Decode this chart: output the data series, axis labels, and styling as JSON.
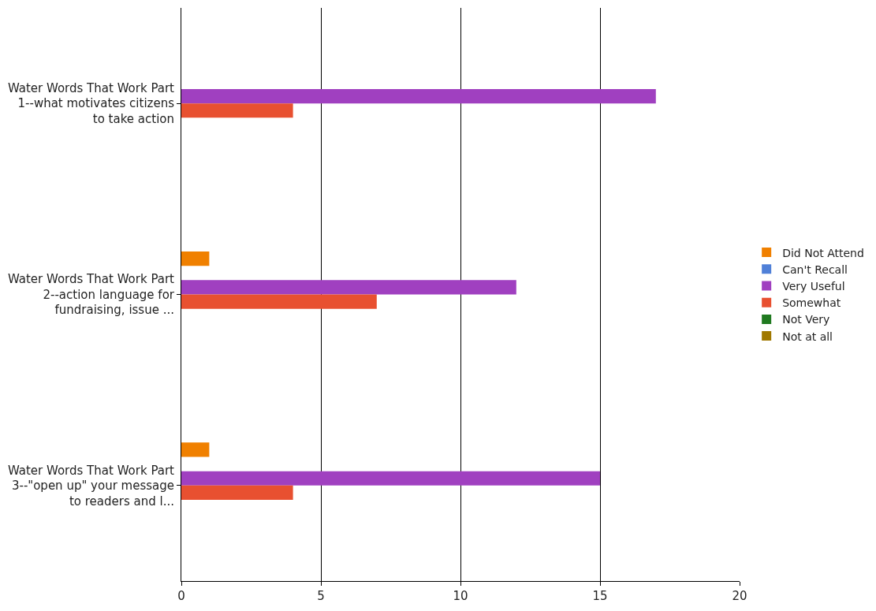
{
  "chart_data": {
    "type": "bar",
    "orientation": "horizontal",
    "categories": [
      "Water Words That Work Part 1--what motivates citizens to take action",
      "Water Words That Work Part 2--action language for fundraising, issue ...",
      "Water Words That Work Part 3--\"open up\" your message to readers and l..."
    ],
    "series": [
      {
        "name": "Did Not Attend",
        "color": "#f08000",
        "values": [
          0,
          1,
          1
        ]
      },
      {
        "name": "Can't Recall",
        "color": "#5080d8",
        "values": [
          0,
          0,
          0
        ]
      },
      {
        "name": "Very Useful",
        "color": "#a040c0",
        "values": [
          17,
          12,
          15
        ]
      },
      {
        "name": "Somewhat",
        "color": "#e85030",
        "values": [
          4,
          7,
          4
        ]
      },
      {
        "name": "Not Very",
        "color": "#207a20",
        "values": [
          0,
          0,
          0
        ]
      },
      {
        "name": "Not at all",
        "color": "#a07800",
        "values": [
          0,
          0,
          0
        ]
      }
    ],
    "xlim": [
      0,
      20
    ],
    "xticks": [
      0,
      5,
      10,
      15,
      20
    ],
    "grid": "x",
    "legend": "right"
  }
}
